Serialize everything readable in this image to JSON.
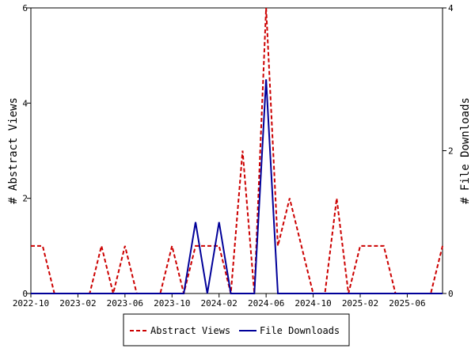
{
  "chart_data": {
    "type": "line",
    "xlabel": "",
    "ylabel_left": "# Abstract Views",
    "ylabel_right": "# File Downloads",
    "x_ticks": [
      "2022-10",
      "2023-02",
      "2023-06",
      "2023-10",
      "2024-02",
      "2024-06",
      "2024-10",
      "2025-02",
      "2025-06"
    ],
    "y_left_ticks": [
      "0",
      "2",
      "4",
      "6"
    ],
    "y_right_ticks": [
      "0",
      "2",
      "4"
    ],
    "y_left_range": [
      0,
      6
    ],
    "y_right_range": [
      0,
      4
    ],
    "grid": false,
    "legend_position": "bottom",
    "x": [
      "2022-10",
      "2022-11",
      "2022-12",
      "2023-01",
      "2023-02",
      "2023-03",
      "2023-04",
      "2023-05",
      "2023-06",
      "2023-07",
      "2023-08",
      "2023-09",
      "2023-10",
      "2023-11",
      "2023-12",
      "2024-01",
      "2024-02",
      "2024-03",
      "2024-04",
      "2024-05",
      "2024-06",
      "2024-07",
      "2024-08",
      "2024-09",
      "2024-10",
      "2024-11",
      "2024-12",
      "2025-01",
      "2025-02",
      "2025-03",
      "2025-04",
      "2025-05",
      "2025-06",
      "2025-07",
      "2025-08",
      "2025-09"
    ],
    "series": [
      {
        "name": "Abstract Views",
        "axis": "left",
        "color": "#cc0000",
        "style": "dashed",
        "values": [
          1,
          1,
          0,
          0,
          0,
          0,
          1,
          0,
          1,
          0,
          0,
          0,
          1,
          0,
          1,
          1,
          1,
          0,
          3,
          0,
          6,
          1,
          2,
          1,
          0,
          0,
          2,
          0,
          1,
          1,
          1,
          0,
          0,
          0,
          0,
          1
        ]
      },
      {
        "name": "File Downloads",
        "axis": "right",
        "color": "#000099",
        "style": "solid",
        "values": [
          0,
          0,
          0,
          0,
          0,
          0,
          0,
          0,
          0,
          0,
          0,
          0,
          0,
          0,
          1,
          0,
          1,
          0,
          0,
          0,
          3,
          0,
          0,
          0,
          0,
          0,
          0,
          0,
          0,
          0,
          0,
          0,
          0,
          0,
          0,
          0
        ]
      }
    ]
  }
}
